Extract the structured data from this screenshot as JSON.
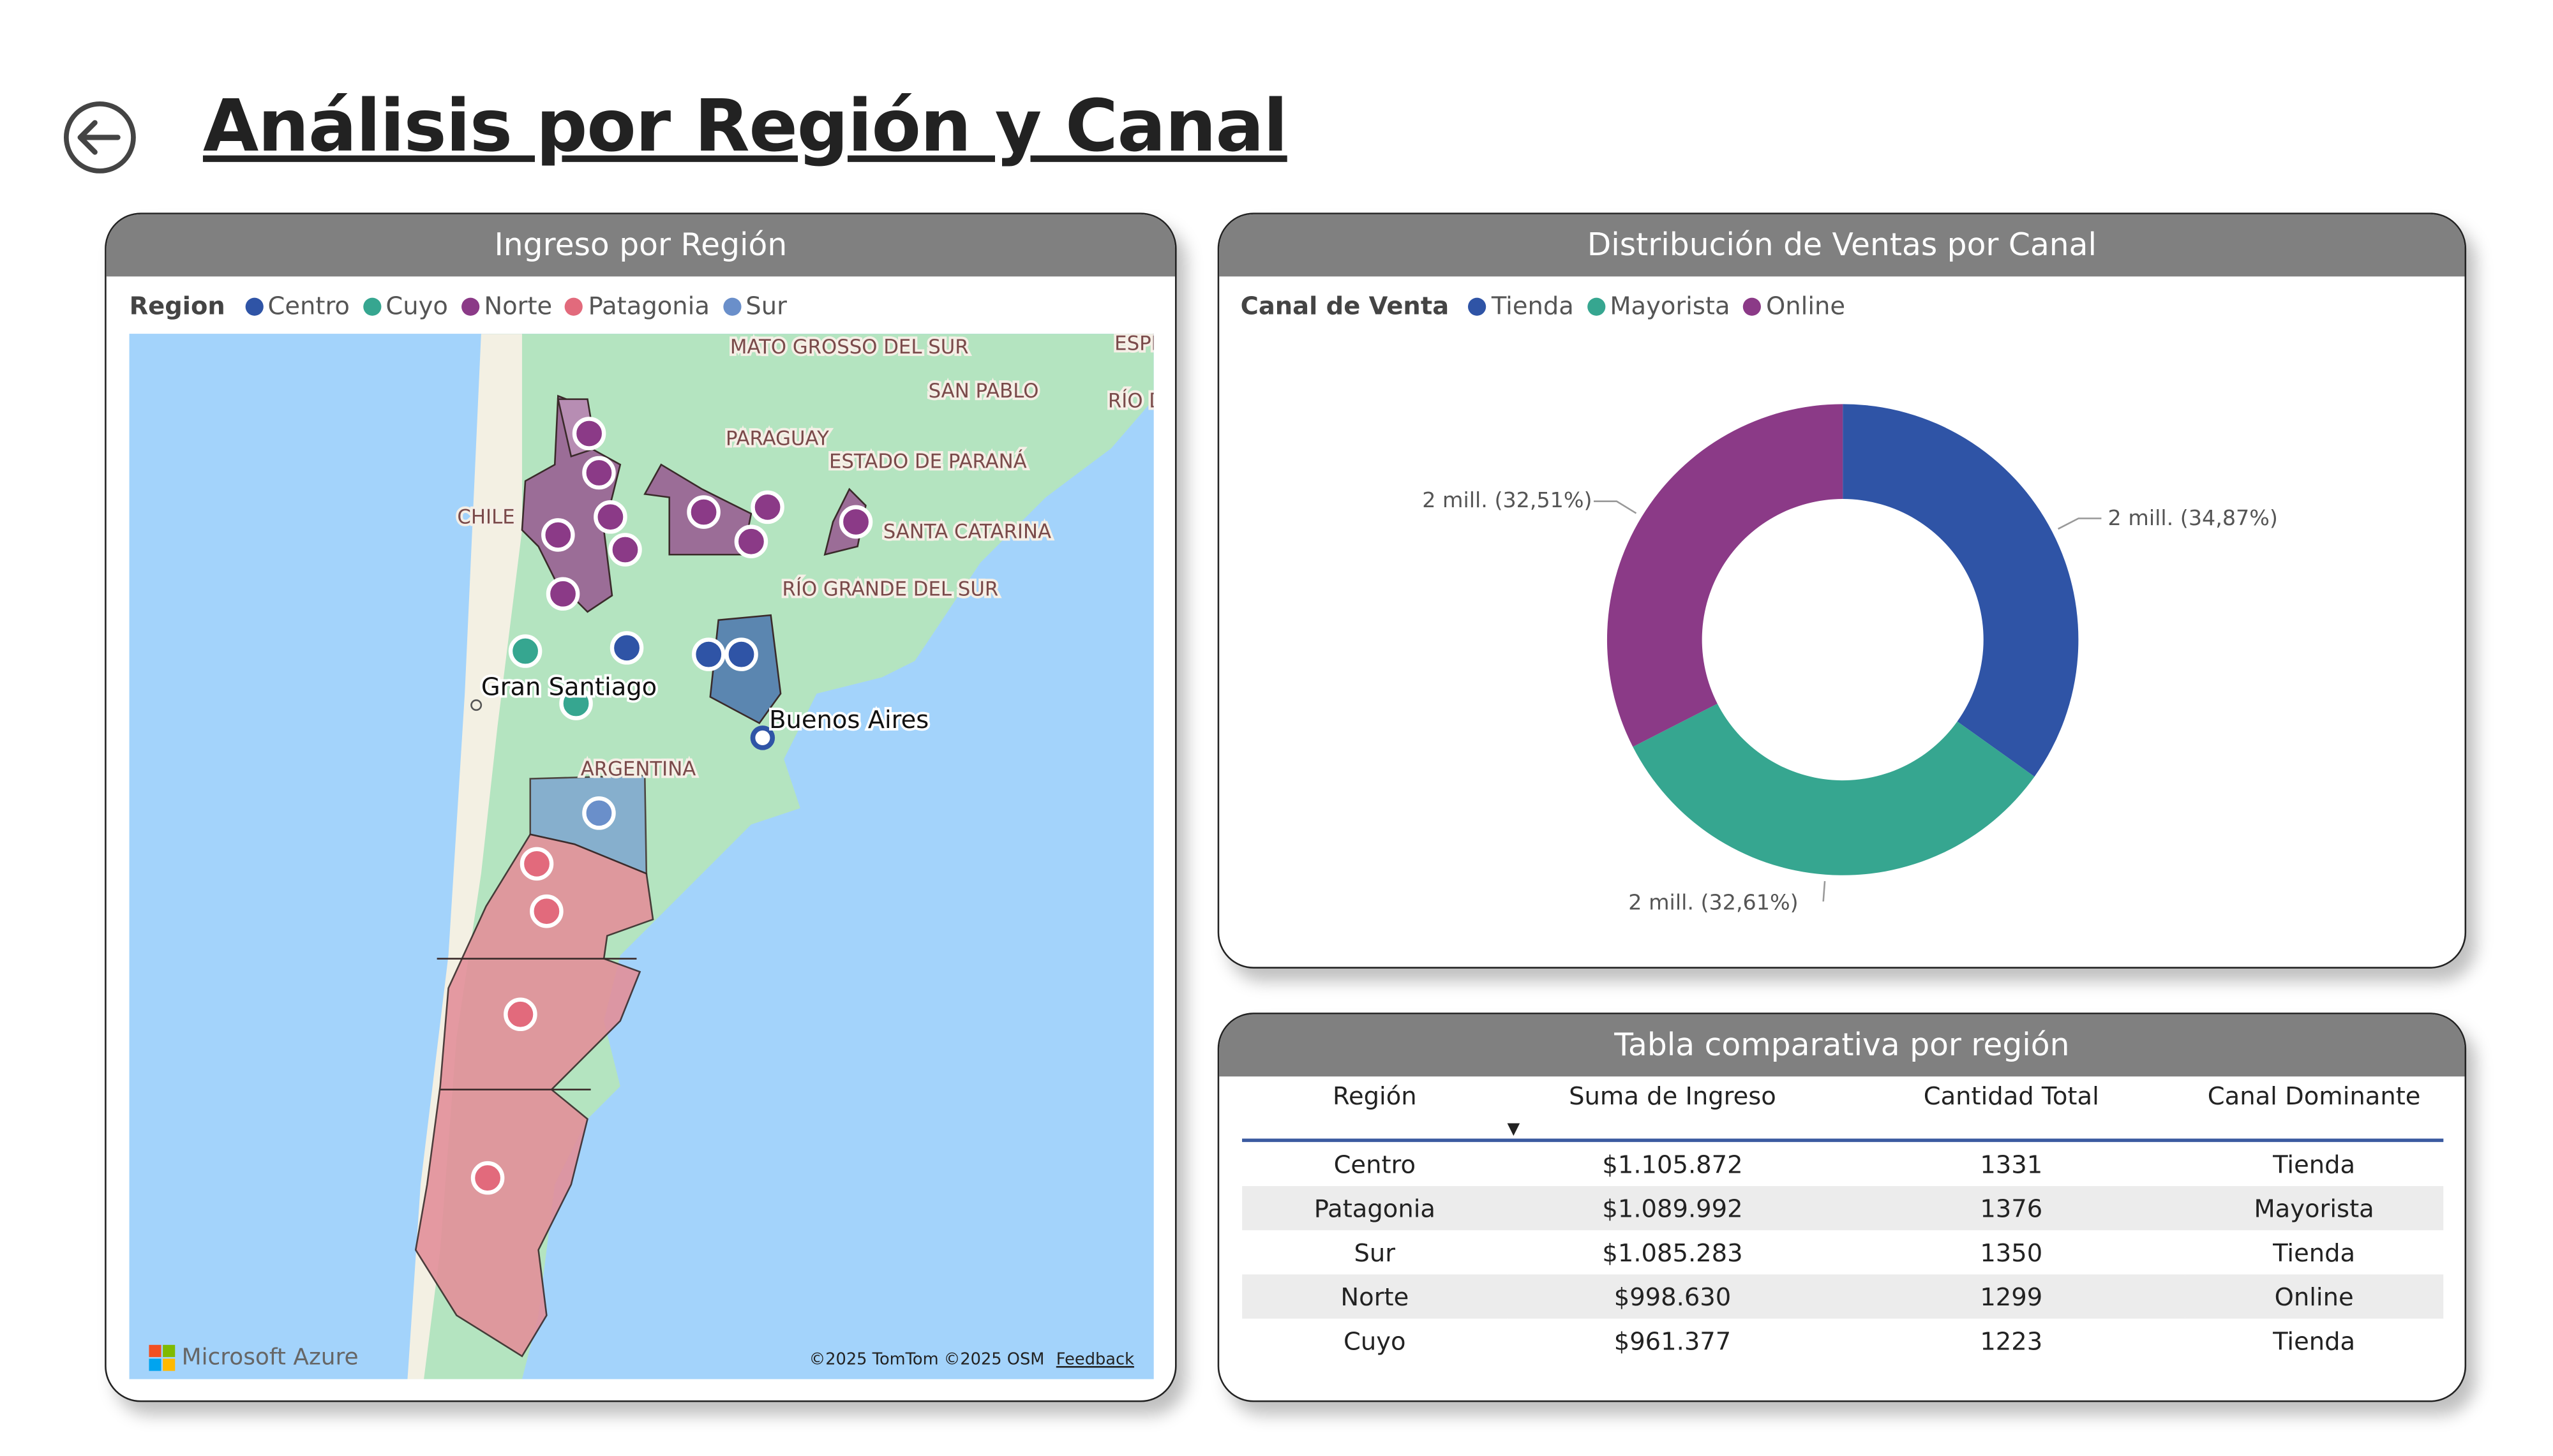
{
  "page": {
    "title": "Análisis por Región y Canal",
    "back_icon": "arrow-left-circle-icon"
  },
  "map_card": {
    "title": "Ingreso por Región",
    "legend_title": "Region",
    "legend": [
      {
        "label": "Centro",
        "color": "#2f54a6"
      },
      {
        "label": "Cuyo",
        "color": "#36a690"
      },
      {
        "label": "Norte",
        "color": "#8b3a87"
      },
      {
        "label": "Patagonia",
        "color": "#e26a7c"
      },
      {
        "label": "Sur",
        "color": "#6a8fca"
      }
    ],
    "labels": [
      "MATO GROSSO DEL SUR",
      "SAN PABLO",
      "ESPÍ",
      "RÍO DE JANE",
      "PARAGUAY",
      "ESTADO DE PARANÁ",
      "CHILE",
      "SANTA CATARINA",
      "RÍO GRANDE DEL SUR",
      "ARGENTINA"
    ],
    "cities": [
      "Gran Santiago",
      "Buenos Aires"
    ],
    "brand": "Microsoft Azure",
    "copyright": "©2025 TomTom ©2025 OSM",
    "feedback": "Feedback"
  },
  "donut_card": {
    "title": "Distribución de Ventas por Canal",
    "legend_title": "Canal de Venta",
    "chart_data": {
      "type": "pie",
      "title": "Distribución de Ventas por Canal",
      "categories": [
        "Tienda",
        "Mayorista",
        "Online"
      ],
      "values": [
        34.87,
        32.61,
        32.51
      ],
      "colors": [
        "#2f54a6",
        "#36a690",
        "#8b3a87"
      ],
      "data_labels": [
        "2 mill. (34,87%)",
        "2 mill. (32,61%)",
        "2 mill. (32,51%)"
      ],
      "legend": "top-left"
    }
  },
  "table_card": {
    "title": "Tabla comparativa por región",
    "columns": [
      "Región",
      "Suma de Ingreso",
      "Cantidad Total",
      "Canal Dominante"
    ],
    "rows": [
      [
        "Centro",
        "$1.105.872",
        "1331",
        "Tienda"
      ],
      [
        "Patagonia",
        "$1.089.992",
        "1376",
        "Mayorista"
      ],
      [
        "Sur",
        "$1.085.283",
        "1350",
        "Tienda"
      ],
      [
        "Norte",
        "$998.630",
        "1299",
        "Online"
      ],
      [
        "Cuyo",
        "$961.377",
        "1223",
        "Tienda"
      ]
    ]
  }
}
